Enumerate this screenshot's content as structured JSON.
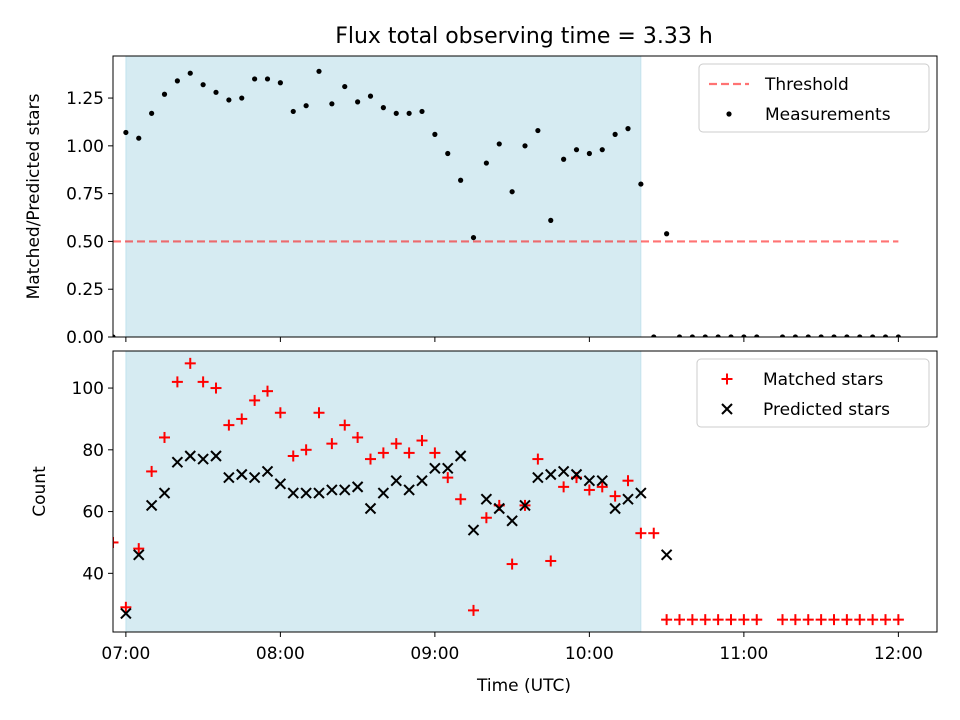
{
  "figure": {
    "title": "Flux total observing time = 3.33 h",
    "xlabel": "Time (UTC)"
  },
  "colors": {
    "highlight": "#add8e6",
    "threshold": "#ff0000",
    "measurement": "#000000",
    "matched": "#ff0000",
    "predicted": "#000000"
  },
  "chart_data": [
    {
      "type": "scatter",
      "panel": "top",
      "ylabel": "Matched/Predicted stars",
      "xlim": [
        "06:55",
        "12:15"
      ],
      "ylim": [
        0,
        1.47
      ],
      "x_ticks": [
        "07:00",
        "08:00",
        "09:00",
        "10:00",
        "11:00",
        "12:00"
      ],
      "y_ticks": [
        "0.00",
        "0.25",
        "0.50",
        "0.75",
        "1.00",
        "1.25"
      ],
      "highlight_span": [
        "07:00",
        "10:20"
      ],
      "legend": "top-right",
      "series": [
        {
          "name": "Threshold",
          "kind": "dashed-line",
          "x": [
            "06:55",
            "12:00"
          ],
          "y": [
            0.5,
            0.5
          ]
        },
        {
          "name": "Measurements",
          "kind": "points",
          "x": [
            "06:55",
            "07:00",
            "07:05",
            "07:10",
            "07:15",
            "07:20",
            "07:25",
            "07:30",
            "07:35",
            "07:40",
            "07:45",
            "07:50",
            "07:55",
            "08:00",
            "08:05",
            "08:10",
            "08:15",
            "08:20",
            "08:25",
            "08:30",
            "08:35",
            "08:40",
            "08:45",
            "08:50",
            "08:55",
            "09:00",
            "09:05",
            "09:10",
            "09:15",
            "09:20",
            "09:25",
            "09:30",
            "09:35",
            "09:40",
            "09:45",
            "09:50",
            "09:55",
            "10:00",
            "10:05",
            "10:10",
            "10:15",
            "10:20",
            "10:25",
            "10:30",
            "10:35",
            "10:40",
            "10:45",
            "10:50",
            "10:55",
            "11:00",
            "11:05",
            "11:15",
            "11:20",
            "11:25",
            "11:30",
            "11:35",
            "11:40",
            "11:45",
            "11:50",
            "11:55",
            "12:00"
          ],
          "y": [
            0,
            1.07,
            1.04,
            1.17,
            1.27,
            1.34,
            1.38,
            1.32,
            1.28,
            1.24,
            1.25,
            1.35,
            1.35,
            1.33,
            1.18,
            1.21,
            1.39,
            1.22,
            1.31,
            1.23,
            1.26,
            1.2,
            1.17,
            1.17,
            1.18,
            1.06,
            0.96,
            0.82,
            0.52,
            0.91,
            1.01,
            0.76,
            1.0,
            1.08,
            0.61,
            0.93,
            0.98,
            0.96,
            0.98,
            1.06,
            1.09,
            0.8,
            0,
            0.54,
            0,
            0,
            0,
            0,
            0,
            0,
            0,
            0,
            0,
            0,
            0,
            0,
            0,
            0,
            0,
            0,
            0
          ]
        }
      ]
    },
    {
      "type": "scatter",
      "panel": "bottom",
      "ylabel": "Count",
      "xlim": [
        "06:55",
        "12:15"
      ],
      "ylim": [
        21,
        112
      ],
      "x_ticks": [
        "07:00",
        "08:00",
        "09:00",
        "10:00",
        "11:00",
        "12:00"
      ],
      "y_ticks": [
        "40",
        "60",
        "80",
        "100"
      ],
      "highlight_span": [
        "07:00",
        "10:20"
      ],
      "legend": "top-right",
      "series": [
        {
          "name": "Matched stars",
          "kind": "plus",
          "x": [
            "06:55",
            "07:00",
            "07:05",
            "07:10",
            "07:15",
            "07:20",
            "07:25",
            "07:30",
            "07:35",
            "07:40",
            "07:45",
            "07:50",
            "07:55",
            "08:00",
            "08:05",
            "08:10",
            "08:15",
            "08:20",
            "08:25",
            "08:30",
            "08:35",
            "08:40",
            "08:45",
            "08:50",
            "08:55",
            "09:00",
            "09:05",
            "09:10",
            "09:15",
            "09:20",
            "09:25",
            "09:30",
            "09:35",
            "09:40",
            "09:45",
            "09:50",
            "09:55",
            "10:00",
            "10:05",
            "10:10",
            "10:15",
            "10:20",
            "10:25",
            "10:30",
            "10:35",
            "10:40",
            "10:45",
            "10:50",
            "10:55",
            "11:00",
            "11:05",
            "11:15",
            "11:20",
            "11:25",
            "11:30",
            "11:35",
            "11:40",
            "11:45",
            "11:50",
            "11:55",
            "12:00"
          ],
          "y": [
            50,
            29,
            48,
            73,
            84,
            102,
            108,
            102,
            100,
            88,
            90,
            96,
            99,
            92,
            78,
            80,
            92,
            82,
            88,
            84,
            77,
            79,
            82,
            79,
            83,
            79,
            71,
            64,
            28,
            58,
            62,
            43,
            62,
            77,
            44,
            68,
            71,
            67,
            68,
            65,
            70,
            53,
            53,
            25,
            25,
            25,
            25,
            25,
            25,
            25,
            25,
            25,
            25,
            25,
            25,
            25,
            25,
            25,
            25,
            25,
            25
          ]
        },
        {
          "name": "Predicted stars",
          "kind": "x",
          "x": [
            "07:00",
            "07:05",
            "07:10",
            "07:15",
            "07:20",
            "07:25",
            "07:30",
            "07:35",
            "07:40",
            "07:45",
            "07:50",
            "07:55",
            "08:00",
            "08:05",
            "08:10",
            "08:15",
            "08:20",
            "08:25",
            "08:30",
            "08:35",
            "08:40",
            "08:45",
            "08:50",
            "08:55",
            "09:00",
            "09:05",
            "09:10",
            "09:15",
            "09:20",
            "09:25",
            "09:30",
            "09:35",
            "09:40",
            "09:45",
            "09:50",
            "09:55",
            "10:00",
            "10:05",
            "10:10",
            "10:15",
            "10:20",
            "10:30"
          ],
          "y": [
            27,
            46,
            62,
            66,
            76,
            78,
            77,
            78,
            71,
            72,
            71,
            73,
            69,
            66,
            66,
            66,
            67,
            67,
            68,
            61,
            66,
            70,
            67,
            70,
            74,
            74,
            78,
            54,
            64,
            61,
            57,
            62,
            71,
            72,
            73,
            72,
            70,
            70,
            61,
            64,
            66,
            46
          ]
        }
      ]
    }
  ]
}
